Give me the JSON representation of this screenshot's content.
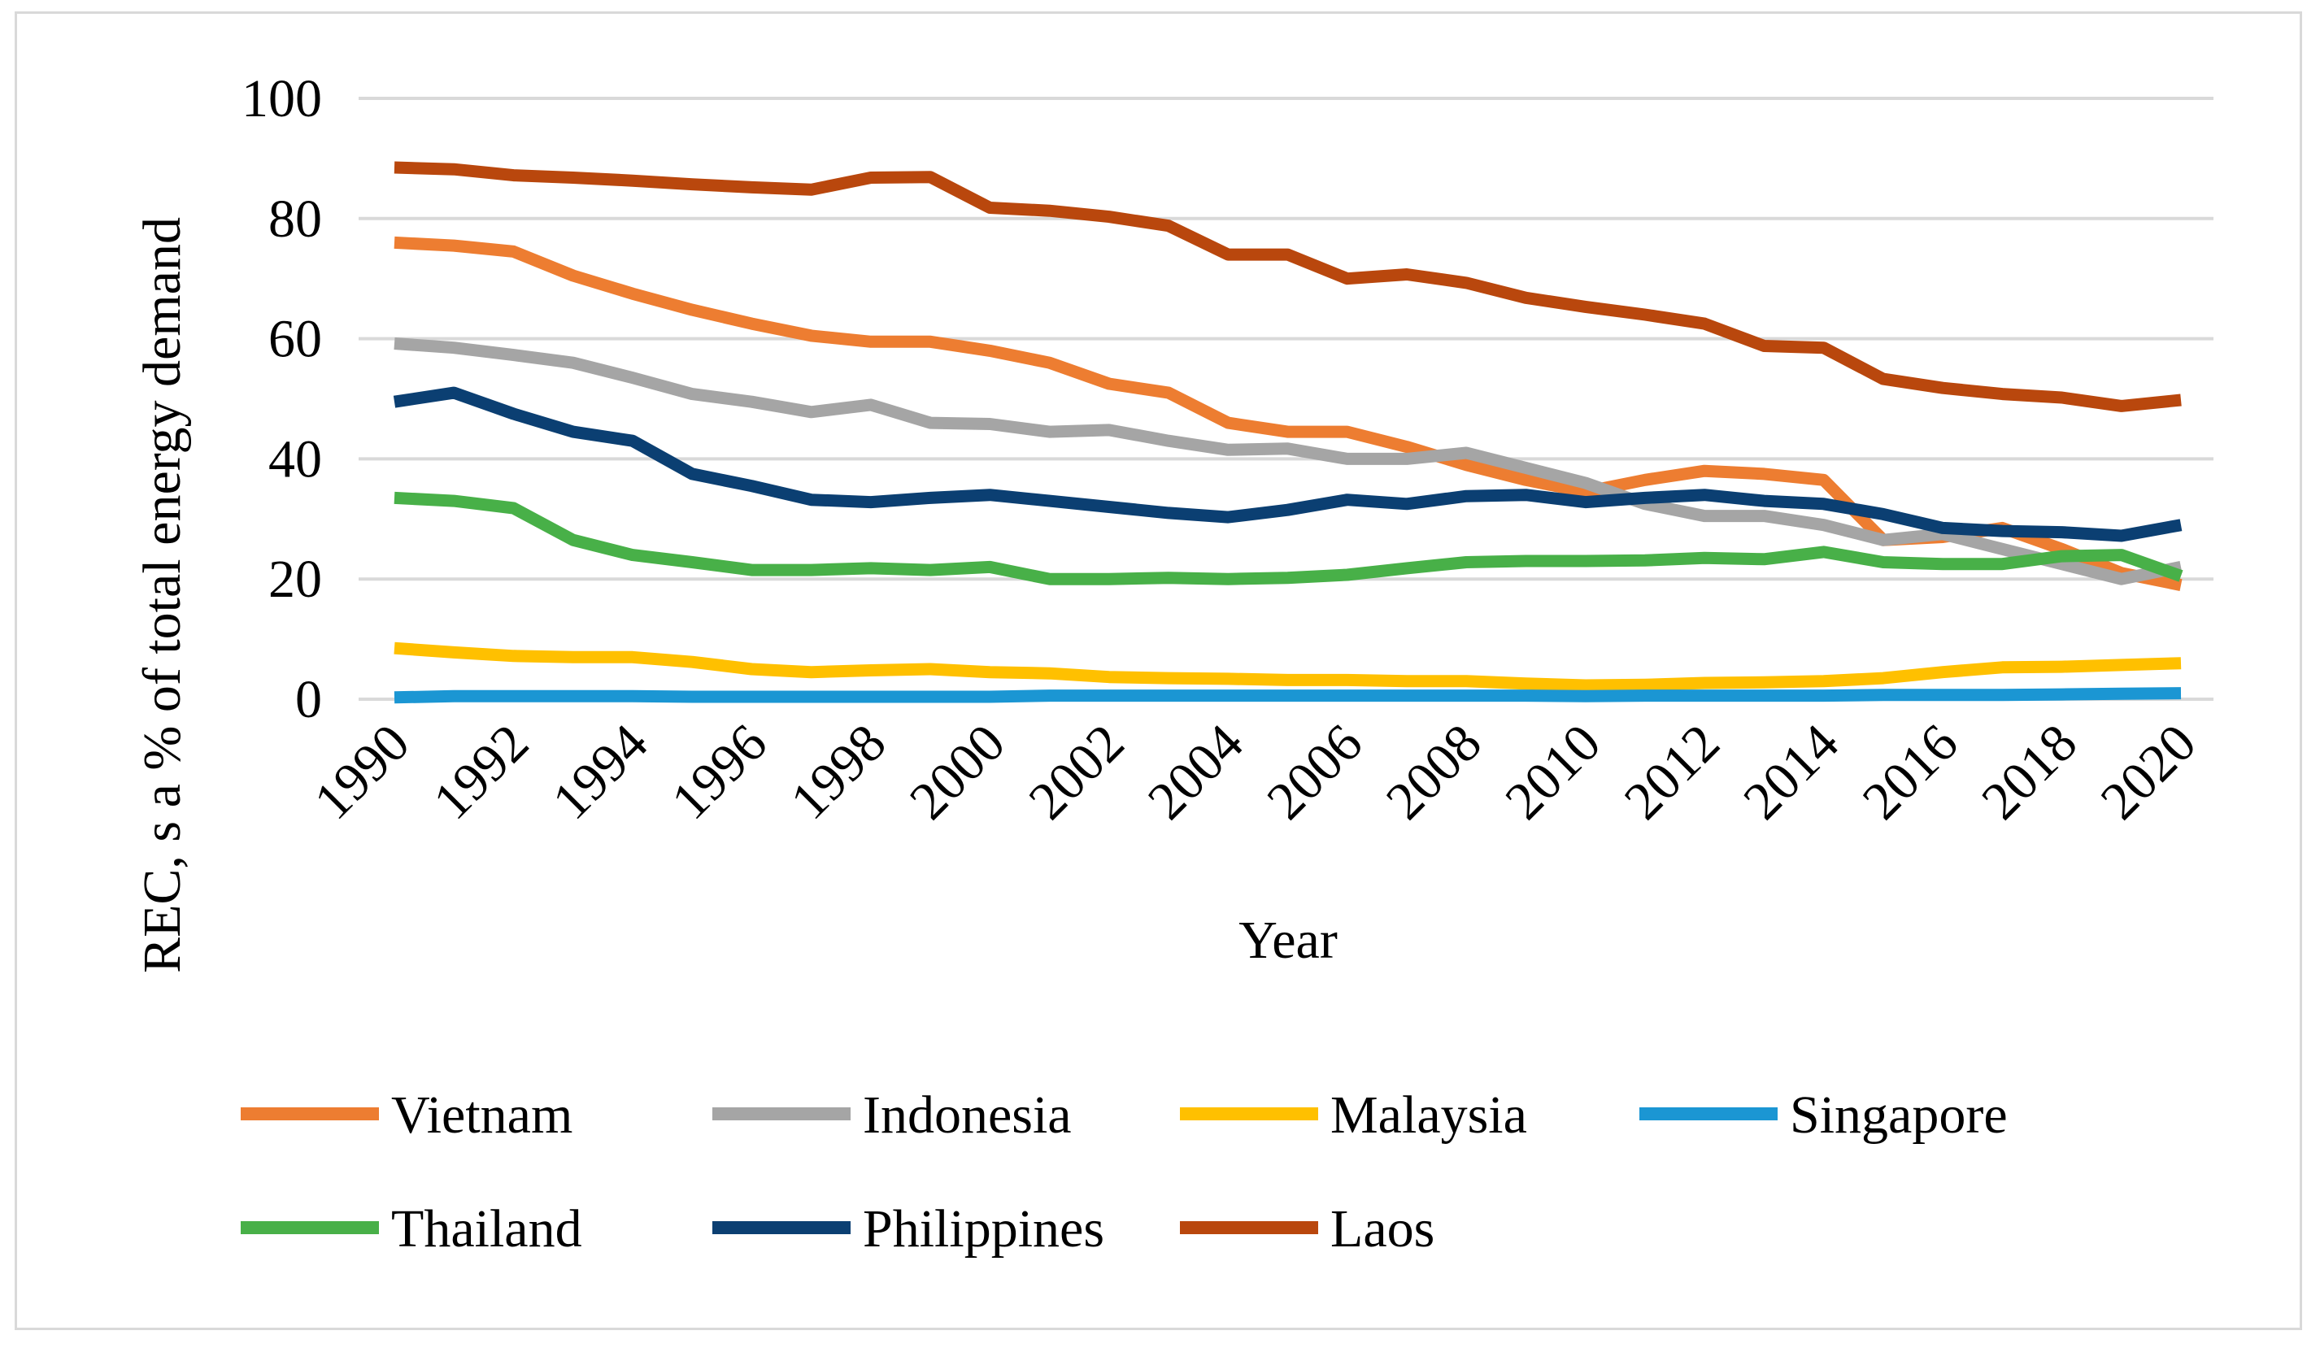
{
  "chart_data": {
    "type": "line",
    "title": "",
    "xlabel": "Year",
    "ylabel": "REC, s a % of total energy demand",
    "ylim": [
      0,
      100
    ],
    "yticks": [
      0,
      20,
      40,
      60,
      80,
      100
    ],
    "x": [
      1990,
      1991,
      1992,
      1993,
      1994,
      1995,
      1996,
      1997,
      1998,
      1999,
      2000,
      2001,
      2002,
      2003,
      2004,
      2005,
      2006,
      2007,
      2008,
      2009,
      2010,
      2011,
      2012,
      2013,
      2014,
      2015,
      2016,
      2017,
      2018,
      2019,
      2020
    ],
    "xtick_labels": [
      "1990",
      "1992",
      "1994",
      "1996",
      "1998",
      "2000",
      "2002",
      "2004",
      "2006",
      "2008",
      "2010",
      "2012",
      "2014",
      "2016",
      "2018",
      "2020"
    ],
    "grid": true,
    "legend_position": "bottom",
    "series": [
      {
        "name": "Vietnam",
        "color": "#ED7D31",
        "values": [
          76,
          75.5,
          74.5,
          70.5,
          67.5,
          64.8,
          62.5,
          60.5,
          59.5,
          59.5,
          58,
          56,
          52.5,
          51,
          46,
          44.5,
          44.5,
          42,
          39,
          36.5,
          34.5,
          36.5,
          38,
          37.5,
          36.5,
          26.5,
          27,
          28.5,
          25,
          21,
          19
        ]
      },
      {
        "name": "Indonesia",
        "color": "#A5A5A5",
        "values": [
          59.2,
          58.5,
          57.3,
          56,
          53.5,
          50.8,
          49.5,
          47.8,
          49,
          46,
          45.8,
          44.5,
          44.8,
          43,
          41.5,
          41.7,
          40,
          40,
          41,
          38.5,
          36,
          32.5,
          30.5,
          30.5,
          29,
          26.5,
          27.5,
          25,
          22.5,
          20,
          22
        ]
      },
      {
        "name": "Malaysia",
        "color": "#FFC000",
        "values": [
          8.5,
          7.8,
          7.2,
          7,
          7,
          6.2,
          5,
          4.5,
          4.8,
          5,
          4.5,
          4.3,
          3.7,
          3.5,
          3.4,
          3.2,
          3.2,
          3,
          3,
          2.6,
          2.3,
          2.4,
          2.7,
          2.8,
          3,
          3.5,
          4.5,
          5.3,
          5.4,
          5.7,
          6
        ]
      },
      {
        "name": "Singapore",
        "color": "#1B96D3",
        "values": [
          0.3,
          0.5,
          0.5,
          0.5,
          0.5,
          0.4,
          0.4,
          0.4,
          0.4,
          0.4,
          0.4,
          0.6,
          0.6,
          0.6,
          0.6,
          0.6,
          0.6,
          0.6,
          0.6,
          0.6,
          0.5,
          0.6,
          0.6,
          0.6,
          0.6,
          0.7,
          0.7,
          0.7,
          0.8,
          0.9,
          1.0
        ]
      },
      {
        "name": "Thailand",
        "color": "#48B048",
        "values": [
          33.5,
          33,
          31.8,
          26.5,
          24,
          22.8,
          21.5,
          21.5,
          21.8,
          21.5,
          22,
          20,
          20,
          20.2,
          20,
          20.2,
          20.7,
          21.8,
          22.8,
          23,
          23,
          23.1,
          23.5,
          23.3,
          24.5,
          22.8,
          22.5,
          22.5,
          23.8,
          24,
          20.5
        ]
      },
      {
        "name": "Philippines",
        "color": "#0B3F72",
        "values": [
          49.5,
          51,
          47.5,
          44.5,
          43,
          37.5,
          35.5,
          33.2,
          32.8,
          33.5,
          34,
          33,
          32,
          31,
          30.3,
          31.5,
          33.2,
          32.5,
          33.8,
          34,
          32.8,
          33.5,
          34,
          33,
          32.5,
          30.8,
          28.5,
          28,
          27.8,
          27.2,
          29
        ]
      },
      {
        "name": "Laos",
        "color": "#B9470D",
        "values": [
          88.5,
          88.2,
          87.2,
          86.8,
          86.3,
          85.7,
          85.2,
          84.8,
          86.8,
          86.9,
          81.8,
          81.3,
          80.3,
          78.8,
          74,
          74,
          70,
          70.7,
          69.3,
          66.8,
          65.3,
          64,
          62.5,
          58.8,
          58.5,
          53.3,
          51.8,
          50.8,
          50.2,
          48.8,
          49.8
        ]
      }
    ]
  }
}
